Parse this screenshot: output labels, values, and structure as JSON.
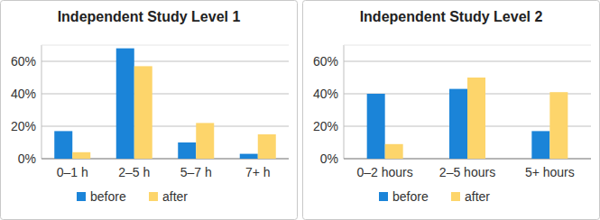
{
  "chart_data": [
    {
      "type": "bar",
      "title": "Independent Study Level 1",
      "categories": [
        "0–1 h",
        "2–5 h",
        "5–7 h",
        "7+ h"
      ],
      "series": [
        {
          "name": "before",
          "color": "#1b84d8",
          "values": [
            17,
            68,
            10,
            3
          ]
        },
        {
          "name": "after",
          "color": "#fdd56b",
          "values": [
            4,
            57,
            22,
            15
          ]
        }
      ],
      "ylim": [
        0,
        70
      ],
      "yticks": [
        {
          "value": 0,
          "label": "0%"
        },
        {
          "value": 20,
          "label": "20%"
        },
        {
          "value": 40,
          "label": "40%"
        },
        {
          "value": 60,
          "label": "60%"
        }
      ],
      "grid": true,
      "legend": "bottom"
    },
    {
      "type": "bar",
      "title": "Independent Study Level 2",
      "categories": [
        "0–2 hours",
        "2–5 hours",
        "5+ hours"
      ],
      "series": [
        {
          "name": "before",
          "color": "#1b84d8",
          "values": [
            40,
            43,
            17
          ]
        },
        {
          "name": "after",
          "color": "#fdd56b",
          "values": [
            9,
            50,
            41
          ]
        }
      ],
      "ylim": [
        0,
        70
      ],
      "yticks": [
        {
          "value": 0,
          "label": "0%"
        },
        {
          "value": 20,
          "label": "20%"
        },
        {
          "value": 40,
          "label": "40%"
        },
        {
          "value": 60,
          "label": "60%"
        }
      ],
      "grid": true,
      "legend": "bottom"
    }
  ]
}
